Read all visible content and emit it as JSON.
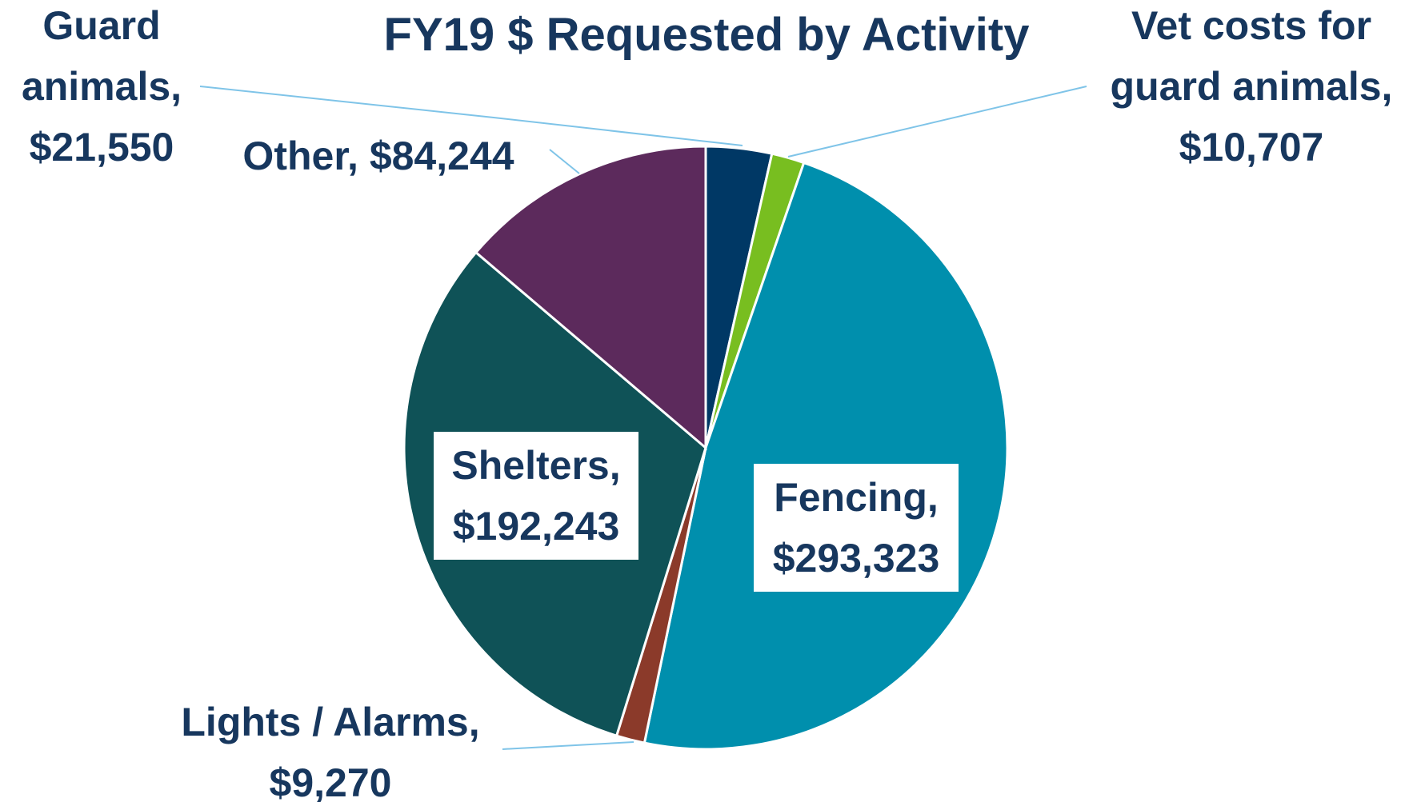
{
  "chart_data": {
    "type": "pie",
    "title": "FY19 $ Requested by Activity",
    "categories": [
      "Guard animals,",
      "Vet costs for guard animals,",
      "Fencing,",
      "Lights / Alarms,",
      "Shelters,",
      "Other,"
    ],
    "values": [
      21550,
      10707,
      293323,
      9270,
      192243,
      84244
    ],
    "value_labels": [
      "$21,550",
      "$10,707",
      "$293,323",
      "$9,270",
      "$192,243",
      "$84,244"
    ],
    "colors": [
      "#003865",
      "#78be20",
      "#008fad",
      "#8b3a2a",
      "#0f5257",
      "#5c2a5c"
    ]
  }
}
